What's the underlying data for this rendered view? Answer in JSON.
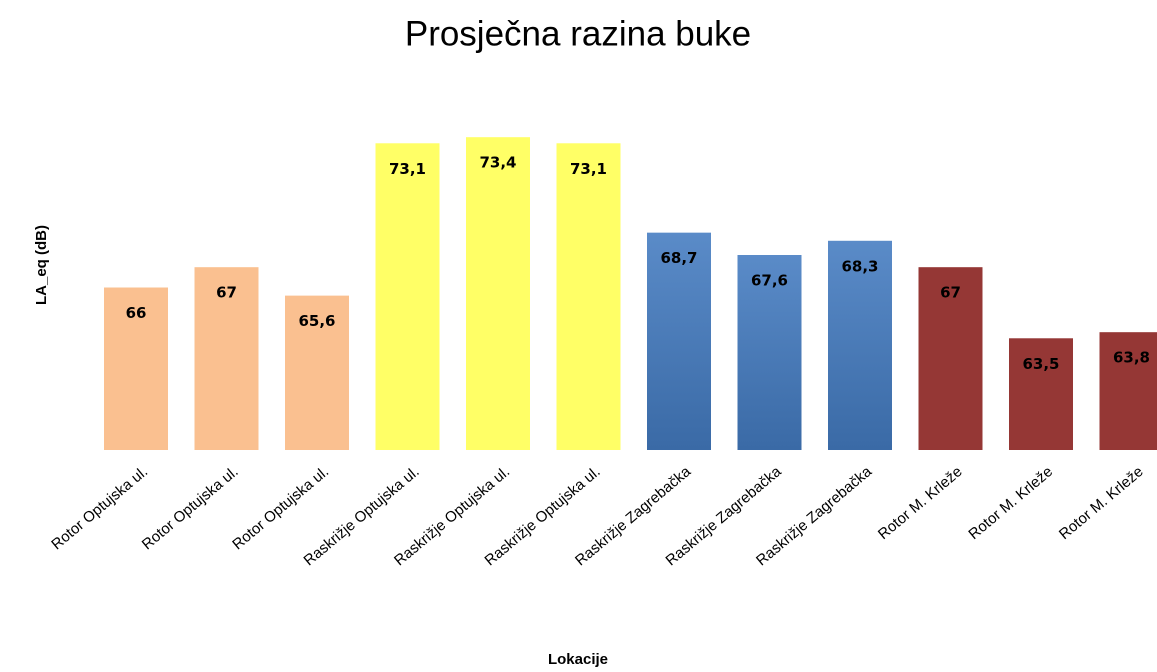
{
  "chart_data": {
    "type": "bar",
    "title": "Prosječna razina buke",
    "x_label": "Lokacije",
    "y_label": "LA_eq (dB)",
    "categories": [
      "Rotor Optujska ul.",
      "Rotor Optujska ul.",
      "Rotor Optujska ul.",
      "Raskrižje Optujska ul.",
      "Raskrižje Optujska ul.",
      "Raskrižje Optujska ul.",
      "Raskrižje Zagrebačka",
      "Raskrižje Zagrebačka",
      "Raskrižje Zagrebačka",
      "Rotor M. Krleže",
      "Rotor M. Krleže",
      "Rotor M. Krleže"
    ],
    "values": [
      66,
      67,
      65.6,
      73.1,
      73.4,
      73.1,
      68.7,
      67.6,
      68.3,
      67,
      63.5,
      63.8
    ],
    "value_labels": [
      "66",
      "67",
      "65,6",
      "73,1",
      "73,4",
      "73,1",
      "68,7",
      "67,6",
      "68,3",
      "67",
      "63,5",
      "63,8"
    ],
    "colors": [
      "#fac090",
      "#fac090",
      "#fac090",
      "#ffff66",
      "#ffff66",
      "#ffff66",
      "#4f81bd",
      "#4f81bd",
      "#4f81bd",
      "#953735",
      "#953735",
      "#953735"
    ],
    "ylim": [
      58,
      74
    ]
  }
}
